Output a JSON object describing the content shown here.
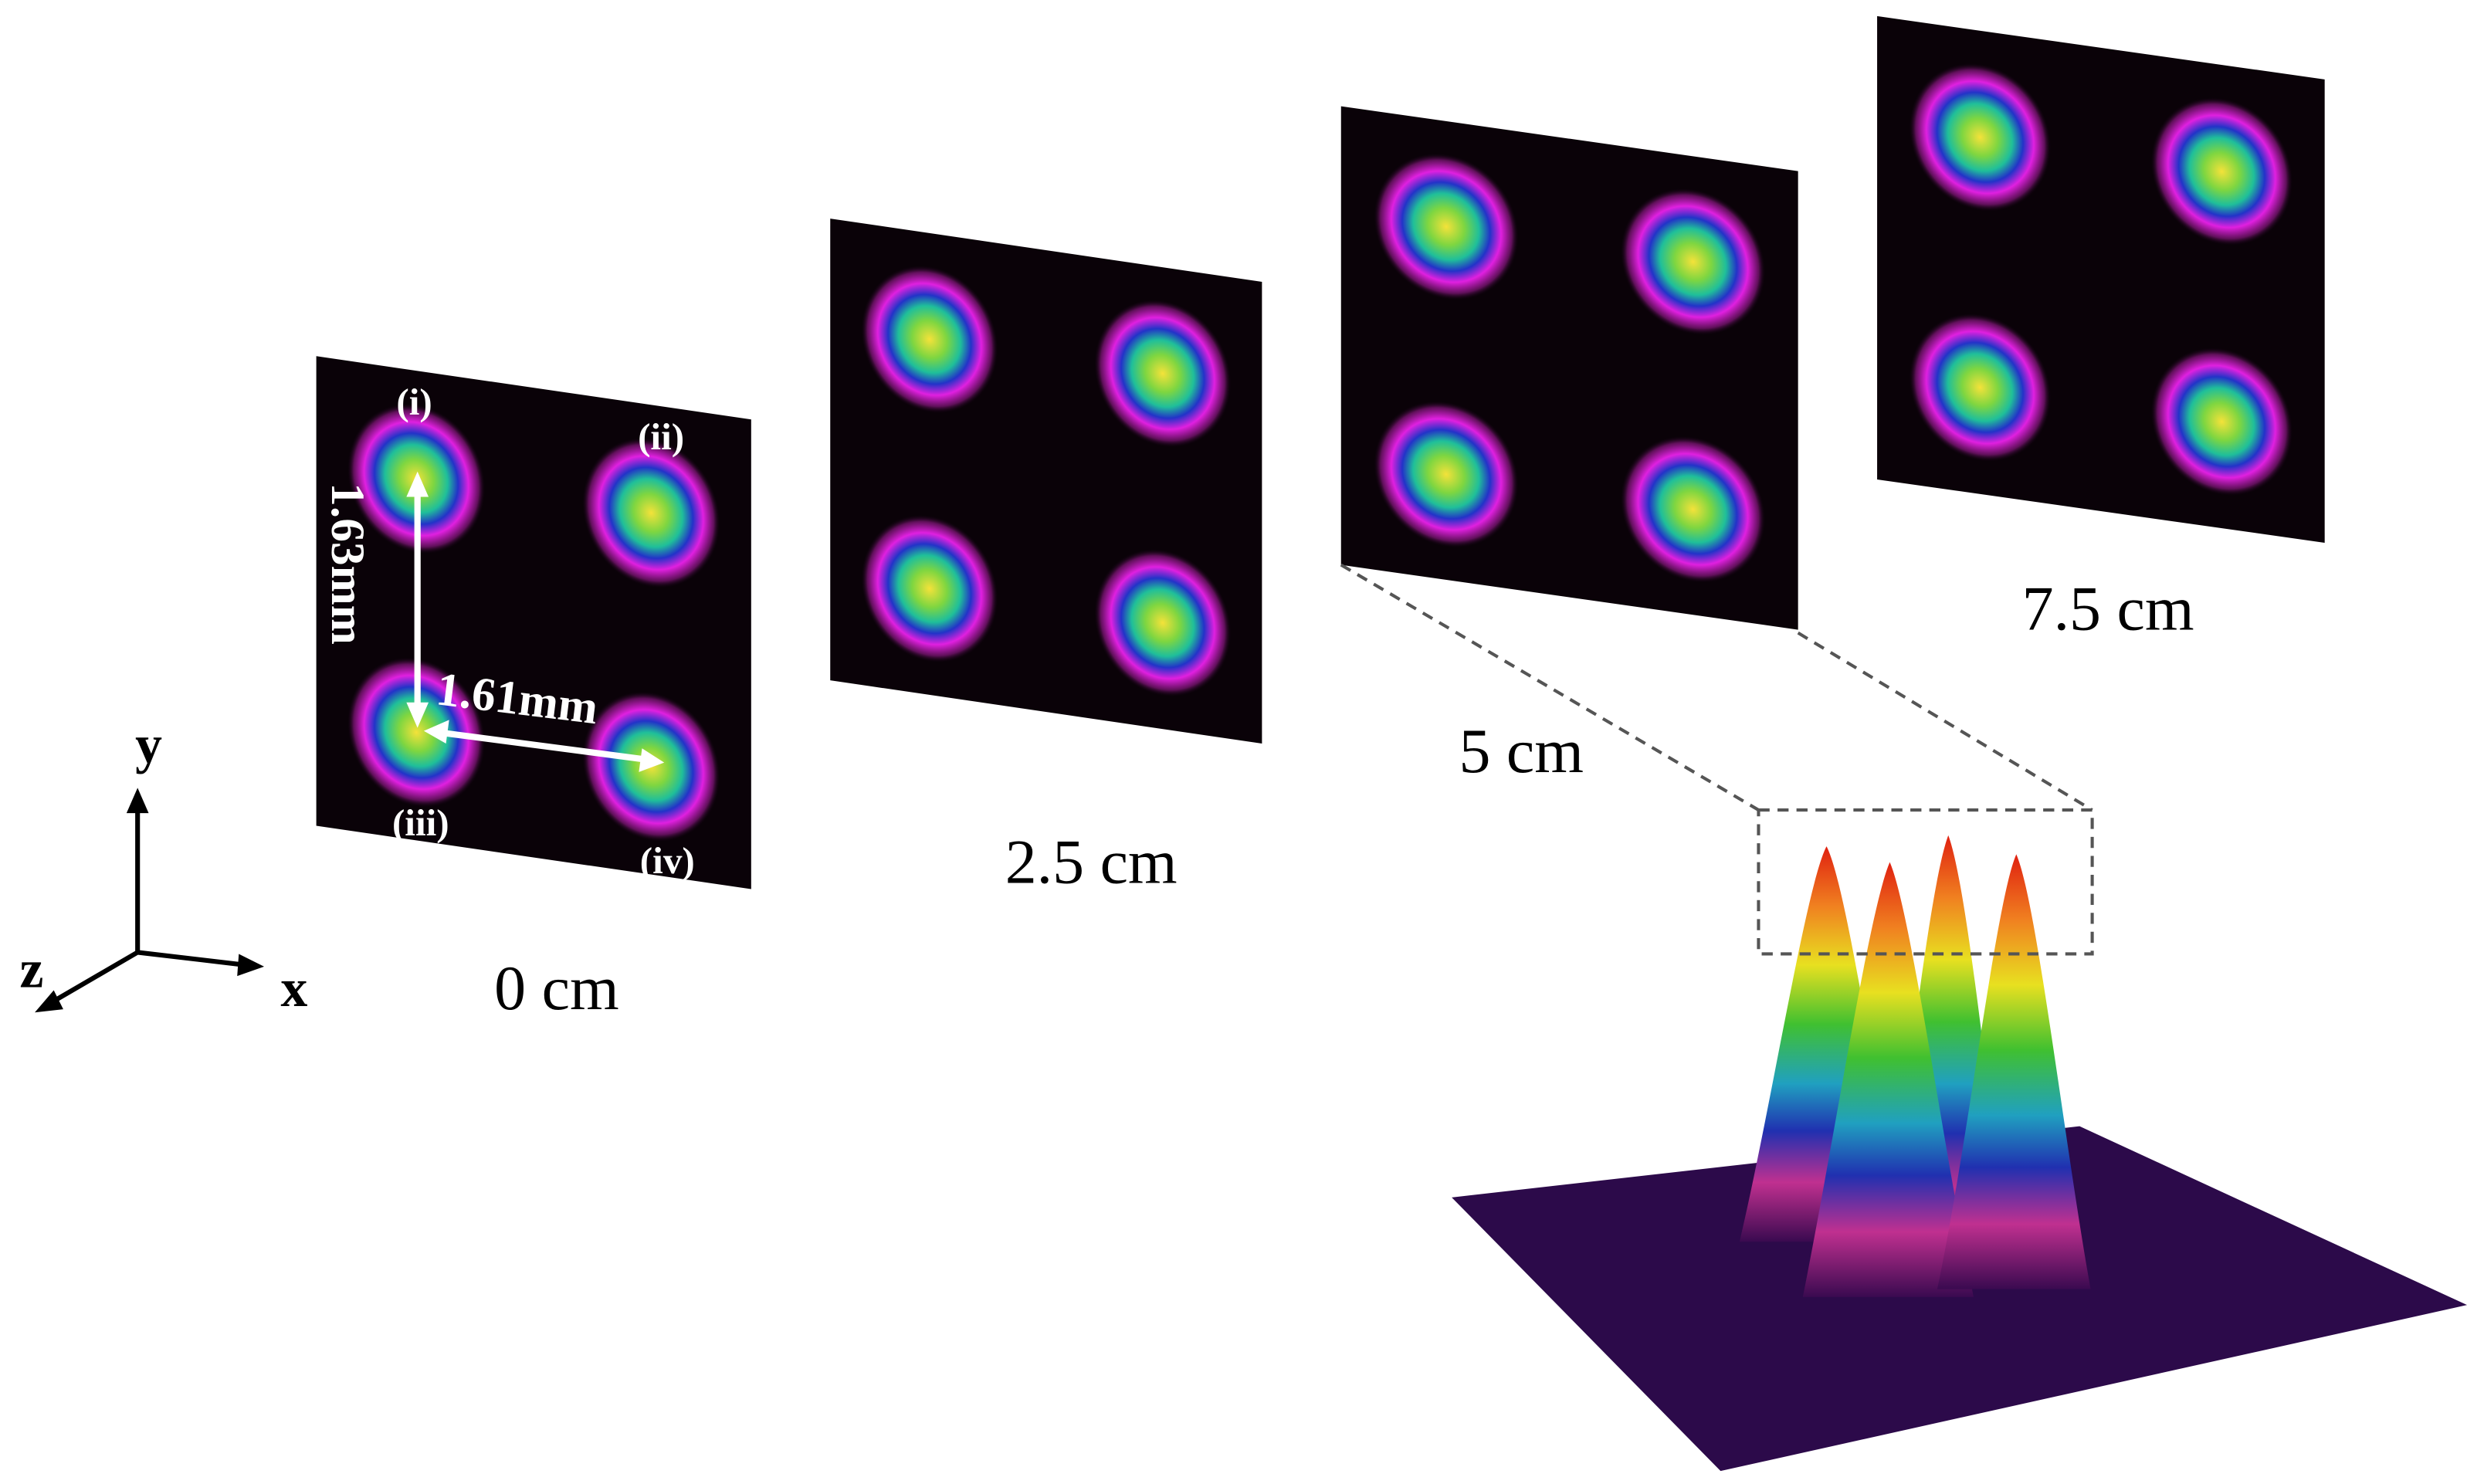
{
  "panel_labels": [
    "(i)",
    "(ii)",
    "(iii)",
    "(iv)"
  ],
  "distances": {
    "vertical": "1.63mm",
    "horizontal": "1.61mm"
  },
  "planes": [
    "0 cm",
    "2.5 cm",
    "5 cm",
    "7.5 cm"
  ],
  "axes": {
    "x": "x",
    "y": "y",
    "z": "z"
  }
}
